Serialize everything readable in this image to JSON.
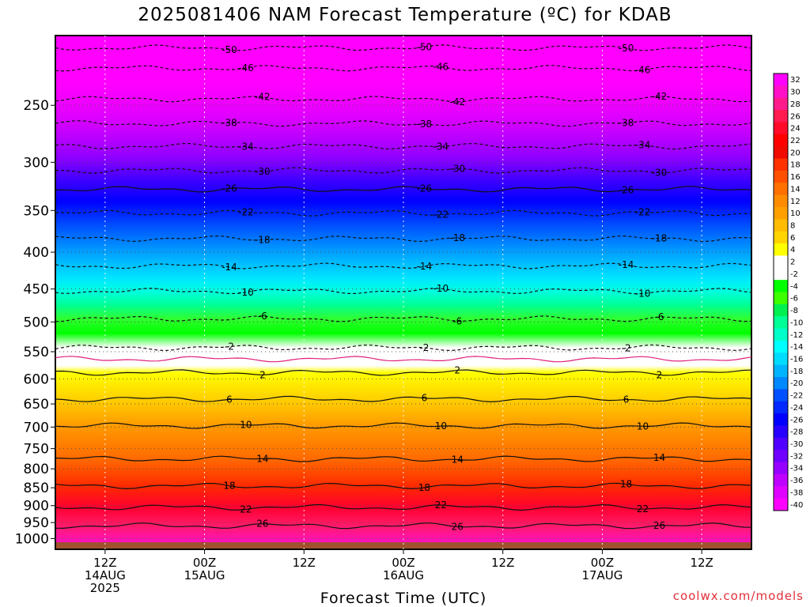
{
  "chart_data": {
    "type": "contour",
    "title": "2025081406 NAM Forecast Temperature (ºC) for KDAB",
    "xlabel": "Forecast Time (UTC)",
    "ylabel": "",
    "credit": "coolwx.com/models",
    "y_scale": "log-pressure",
    "ylim": [
      1035,
      200
    ],
    "y_ticks": [
      250,
      300,
      350,
      400,
      450,
      500,
      550,
      600,
      650,
      700,
      750,
      800,
      850,
      900,
      950,
      1000
    ],
    "xlim": [
      0,
      84
    ],
    "x_ticks": [
      {
        "hour": 6,
        "line1": "12Z",
        "line2": "14AUG",
        "line3": "2025"
      },
      {
        "hour": 18,
        "line1": "00Z",
        "line2": "15AUG",
        "line3": ""
      },
      {
        "hour": 30,
        "line1": "12Z",
        "line2": "",
        "line3": ""
      },
      {
        "hour": 42,
        "line1": "00Z",
        "line2": "16AUG",
        "line3": ""
      },
      {
        "hour": 54,
        "line1": "12Z",
        "line2": "",
        "line3": ""
      },
      {
        "hour": 66,
        "line1": "00Z",
        "line2": "17AUG",
        "line3": ""
      },
      {
        "hour": 78,
        "line1": "12Z",
        "line2": "",
        "line3": ""
      }
    ],
    "grid": true,
    "colorbar": {
      "placement": "right",
      "labels": [
        "32",
        "30",
        "28",
        "26",
        "24",
        "22",
        "20",
        "18",
        "16",
        "14",
        "12",
        "10",
        "8",
        "6",
        "4",
        "2",
        "-2",
        "-4",
        "-6",
        "-8",
        "-10",
        "-12",
        "-14",
        "-16",
        "-18",
        "-20",
        "-22",
        "-24",
        "-26",
        "-28",
        "-30",
        "-32",
        "-34",
        "-36",
        "-38",
        "-40"
      ],
      "colors": [
        "#ff00ff",
        "#ff10c8",
        "#ff1a8c",
        "#ff1a50",
        "#ff0a28",
        "#ff0000",
        "#f00a00",
        "#ff3200",
        "#ff5000",
        "#ff7000",
        "#ff8c00",
        "#ffa000",
        "#ffbc00",
        "#ffd400",
        "#ffff00",
        "#ffffff",
        "#ffffff",
        "#00ff00",
        "#3cff00",
        "#00f050",
        "#00ff96",
        "#00ffc8",
        "#00ffff",
        "#00dcff",
        "#00b4ff",
        "#0088ff",
        "#0050ff",
        "#0028ff",
        "#0000ff",
        "#2800ff",
        "#5000ff",
        "#7000ff",
        "#9600ff",
        "#c000ff",
        "#e000ff",
        "#ff00ff"
      ]
    },
    "contours": [
      {
        "temp": -50,
        "label": "-50",
        "pressure": 208,
        "dashed": true
      },
      {
        "temp": -46,
        "label": "-46",
        "pressure": 222,
        "dashed": true
      },
      {
        "temp": -42,
        "label": "-42",
        "pressure": 245,
        "dashed": true
      },
      {
        "temp": -38,
        "label": "-38",
        "pressure": 265,
        "dashed": true
      },
      {
        "temp": -34,
        "label": "-34",
        "pressure": 285,
        "dashed": true
      },
      {
        "temp": -30,
        "label": "-30",
        "pressure": 308,
        "dashed": true
      },
      {
        "temp": -26,
        "label": "-26",
        "pressure": 327,
        "dashed": false
      },
      {
        "temp": -22,
        "label": "-22",
        "pressure": 353,
        "dashed": true
      },
      {
        "temp": -18,
        "label": "-18",
        "pressure": 383,
        "dashed": true
      },
      {
        "temp": -14,
        "label": "-14",
        "pressure": 418,
        "dashed": true
      },
      {
        "temp": -10,
        "label": "-10",
        "pressure": 453,
        "dashed": true
      },
      {
        "temp": -6,
        "label": "-6",
        "pressure": 495,
        "dashed": true
      },
      {
        "temp": -2,
        "label": "-2",
        "pressure": 543,
        "dashed": true
      },
      {
        "temp": 0,
        "label": "",
        "pressure": 563,
        "dashed": false
      },
      {
        "temp": 2,
        "label": "2",
        "pressure": 588,
        "dashed": false
      },
      {
        "temp": 6,
        "label": "6",
        "pressure": 640,
        "dashed": false
      },
      {
        "temp": 10,
        "label": "10",
        "pressure": 697,
        "dashed": false
      },
      {
        "temp": 14,
        "label": "14",
        "pressure": 775,
        "dashed": false
      },
      {
        "temp": 18,
        "label": "18",
        "pressure": 845,
        "dashed": false
      },
      {
        "temp": 22,
        "label": "22",
        "pressure": 905,
        "dashed": false
      },
      {
        "temp": 26,
        "label": "26",
        "pressure": 960,
        "dashed": false
      }
    ]
  }
}
